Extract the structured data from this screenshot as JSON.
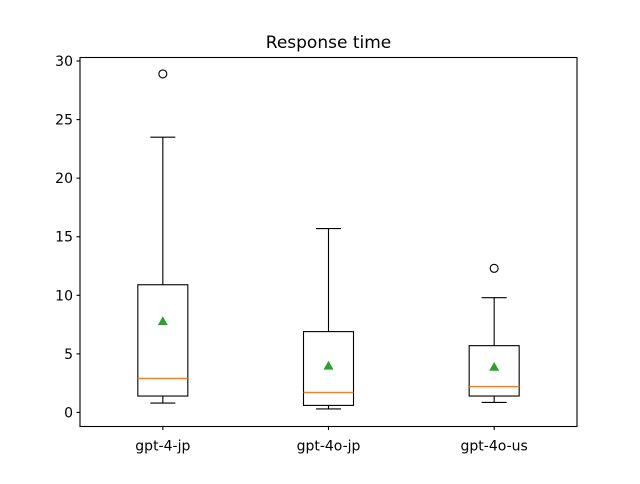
{
  "title": "Response time",
  "chart_data": {
    "type": "boxplot",
    "title": "Response time",
    "categories": [
      "gpt-4-jp",
      "gpt-4o-jp",
      "gpt-4o-us"
    ],
    "xlabel": "",
    "ylabel": "",
    "yticks": [
      0,
      5,
      10,
      15,
      20,
      25,
      30
    ],
    "ylim": [
      -1.2,
      30.3
    ],
    "grid": false,
    "legend": "none",
    "series": [
      {
        "name": "gpt-4-jp",
        "whisker_low": 0.8,
        "q1": 1.4,
        "median": 2.9,
        "q3": 10.9,
        "whisker_high": 23.5,
        "mean": 7.8,
        "outliers": [
          28.9
        ]
      },
      {
        "name": "gpt-4o-jp",
        "whisker_low": 0.3,
        "q1": 0.6,
        "median": 1.7,
        "q3": 6.9,
        "whisker_high": 15.7,
        "mean": 4.0,
        "outliers": []
      },
      {
        "name": "gpt-4o-us",
        "whisker_low": 0.85,
        "q1": 1.4,
        "median": 2.2,
        "q3": 5.7,
        "whisker_high": 9.8,
        "mean": 3.9,
        "outliers": [
          12.3
        ]
      }
    ],
    "colors": {
      "box_line": "#000000",
      "median": "#ff7f0e",
      "mean_marker": "#2ca02c",
      "background": "#ffffff"
    }
  }
}
